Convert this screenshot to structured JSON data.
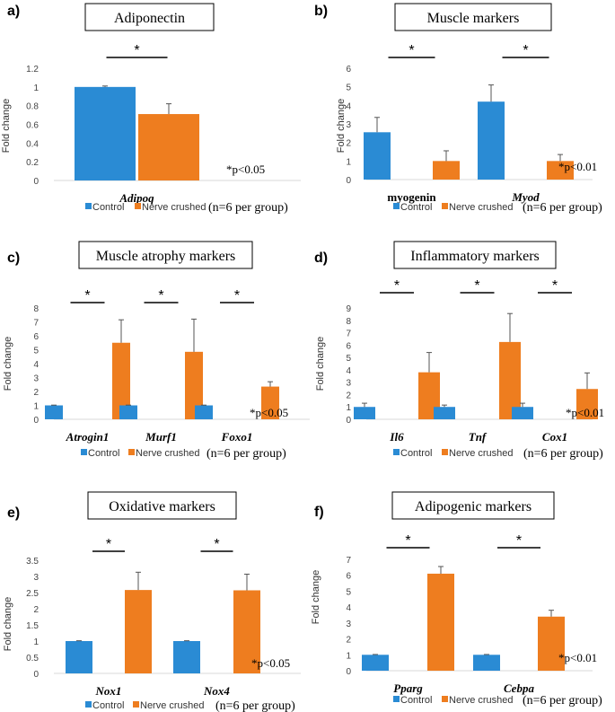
{
  "colors": {
    "control": "#2a8bd4",
    "nerve_crushed": "#ee7d1f"
  },
  "chart_data": [
    {
      "panel": "a)",
      "type": "bar",
      "title": "Adiponectin",
      "ylabel": "Fold change",
      "yticks": [
        "0",
        "0.2",
        "0.4",
        "0.6",
        "0.8",
        "1",
        "1.2"
      ],
      "ylim": [
        0,
        1.2
      ],
      "categories": [
        "Adipoq"
      ],
      "category_italic": [
        true
      ],
      "series": [
        {
          "name": "Control",
          "values": [
            1.0
          ],
          "errors": [
            0.01
          ]
        },
        {
          "name": "Nerve crushed",
          "values": [
            0.71
          ],
          "errors": [
            0.11
          ]
        }
      ],
      "significance": [
        "*"
      ],
      "pvalue": "*p<0.05",
      "legend": [
        "Control",
        "Nerve crushed"
      ],
      "group_note": "(n=6 per group)"
    },
    {
      "panel": "b)",
      "type": "bar",
      "title": "Muscle markers",
      "ylabel": "Fold change",
      "yticks": [
        "0",
        "1",
        "2",
        "3",
        "4",
        "5",
        "6"
      ],
      "ylim": [
        0,
        6
      ],
      "categories": [
        "myogenin",
        "Myod"
      ],
      "category_italic": [
        false,
        true
      ],
      "series": [
        {
          "name": "Control",
          "values": [
            2.55,
            4.2
          ],
          "errors": [
            0.8,
            0.9
          ]
        },
        {
          "name": "Nerve crushed",
          "values": [
            1.0,
            1.0
          ],
          "errors": [
            0.55,
            0.35
          ]
        }
      ],
      "significance": [
        "*",
        "*"
      ],
      "pvalue": "*p<0.01",
      "legend": [
        "Control",
        "Nerve crushed"
      ],
      "group_note": "(n=6 per group)"
    },
    {
      "panel": "c)",
      "type": "bar",
      "title": "Muscle atrophy markers",
      "ylabel": "Fold change",
      "yticks": [
        "0",
        "1",
        "2",
        "3",
        "4",
        "5",
        "6",
        "7",
        "8"
      ],
      "ylim": [
        0,
        8
      ],
      "categories": [
        "Atrogin1",
        "Murf1",
        "Foxo1"
      ],
      "category_italic": [
        true,
        true,
        true
      ],
      "series": [
        {
          "name": "Control",
          "values": [
            1.0,
            1.0,
            1.0
          ],
          "errors": [
            0.02,
            0.02,
            0.02
          ]
        },
        {
          "name": "Nerve crushed",
          "values": [
            5.5,
            4.85,
            2.35
          ],
          "errors": [
            1.65,
            2.35,
            0.35
          ]
        }
      ],
      "significance": [
        "*",
        "*",
        "*"
      ],
      "pvalue": "*p<0.05",
      "legend": [
        "Control",
        "Nerve crushed"
      ],
      "group_note": "(n=6 per group)"
    },
    {
      "panel": "d)",
      "type": "bar",
      "title": "Inflammatory markers",
      "ylabel": "Fold change",
      "yticks": [
        "0",
        "1",
        "2",
        "3",
        "4",
        "5",
        "6",
        "7",
        "8",
        "9"
      ],
      "ylim": [
        0,
        9
      ],
      "categories": [
        "Il6",
        "Tnf",
        "Cox1"
      ],
      "category_italic": [
        true,
        true,
        true
      ],
      "series": [
        {
          "name": "Control",
          "values": [
            1.0,
            1.0,
            1.0
          ],
          "errors": [
            0.3,
            0.15,
            0.3
          ]
        },
        {
          "name": "Nerve crushed",
          "values": [
            3.8,
            6.25,
            2.45
          ],
          "errors": [
            1.6,
            2.3,
            1.3
          ]
        }
      ],
      "significance": [
        "*",
        "*",
        "*"
      ],
      "pvalue": "*p<0.01",
      "legend": [
        "Control",
        "Nerve crushed"
      ],
      "group_note": "(n=6 per group)"
    },
    {
      "panel": "e)",
      "type": "bar",
      "title": "Oxidative markers",
      "ylabel": "Fold change",
      "yticks": [
        "0",
        "0.5",
        "1",
        "1.5",
        "2",
        "2.5",
        "3",
        "3.5"
      ],
      "ylim": [
        0,
        3.5
      ],
      "categories": [
        "Nox1",
        "Nox4"
      ],
      "category_italic": [
        true,
        true
      ],
      "series": [
        {
          "name": "Control",
          "values": [
            1.0,
            1.0
          ],
          "errors": [
            0.01,
            0.01
          ]
        },
        {
          "name": "Nerve crushed",
          "values": [
            2.58,
            2.57
          ],
          "errors": [
            0.55,
            0.5
          ]
        }
      ],
      "significance": [
        "*",
        "*"
      ],
      "pvalue": "*p<0.05",
      "legend": [
        "Control",
        "Nerve crushed"
      ],
      "group_note": "(n=6 per group)"
    },
    {
      "panel": "f)",
      "type": "bar",
      "title": "Adipogenic markers",
      "ylabel": "Fold change",
      "yticks": [
        "0",
        "1",
        "2",
        "3",
        "4",
        "5",
        "6",
        "7"
      ],
      "ylim": [
        0,
        7
      ],
      "categories": [
        "Pparg",
        "Cebpa"
      ],
      "category_italic": [
        true,
        true
      ],
      "series": [
        {
          "name": "Control",
          "values": [
            1.0,
            1.0
          ],
          "errors": [
            0.02,
            0.02
          ]
        },
        {
          "name": "Nerve crushed",
          "values": [
            6.1,
            3.4
          ],
          "errors": [
            0.45,
            0.4
          ]
        }
      ],
      "significance": [
        "*",
        "*"
      ],
      "pvalue": "*p<0.01",
      "legend": [
        "Control",
        "Nerve crushed"
      ],
      "group_note": "(n=6 per group)"
    }
  ]
}
